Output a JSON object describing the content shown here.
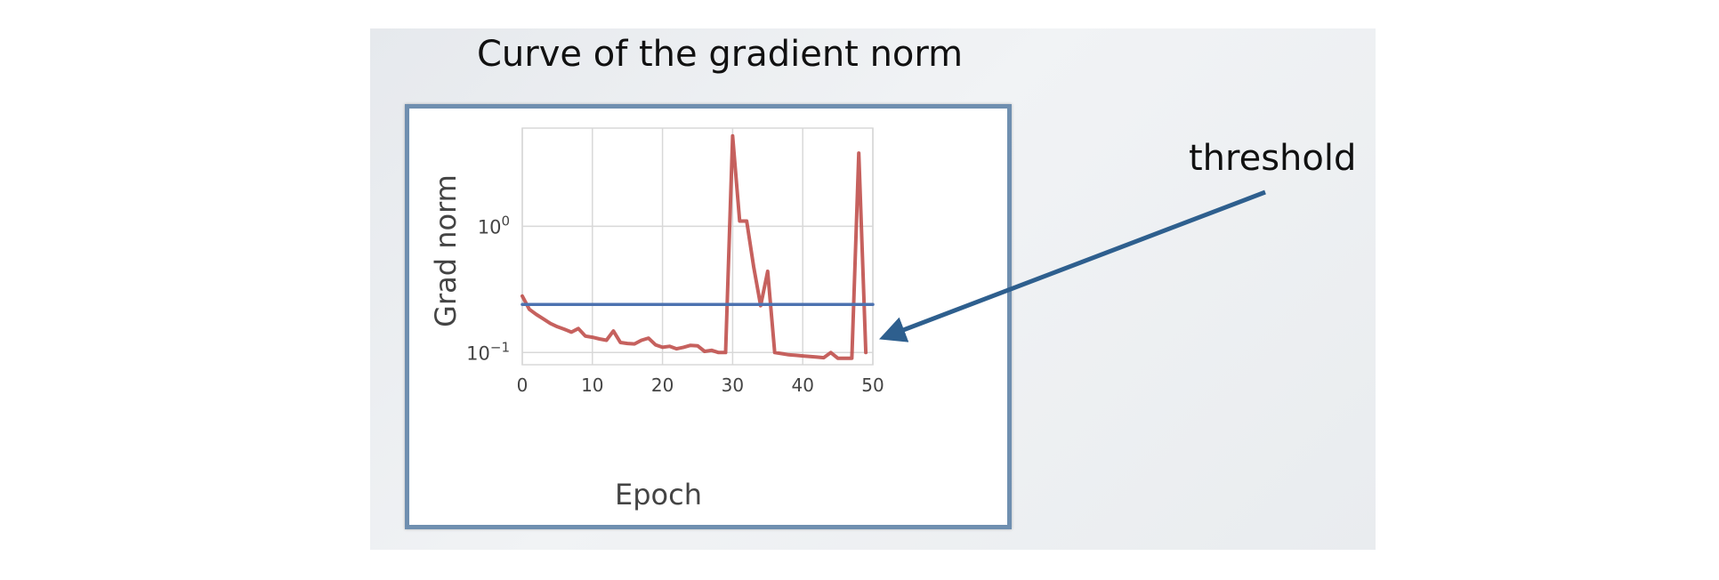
{
  "slide": {
    "title": "Curve of the gradient norm",
    "threshold_label": "threshold"
  },
  "chart_data": {
    "type": "line",
    "title": "",
    "xlabel": "Epoch",
    "ylabel": "Grad norm",
    "xlim": [
      0,
      50
    ],
    "ylim": [
      0.08,
      6
    ],
    "y_scale": "log",
    "x_ticks": [
      {
        "value": 0,
        "label": "0"
      },
      {
        "value": 10,
        "label": "10"
      },
      {
        "value": 20,
        "label": "20"
      },
      {
        "value": 30,
        "label": "30"
      },
      {
        "value": 40,
        "label": "40"
      },
      {
        "value": 50,
        "label": "50"
      }
    ],
    "y_ticks": [
      {
        "value": 0.1,
        "base": "10",
        "exp": "−1"
      },
      {
        "value": 1,
        "base": "10",
        "exp": "0"
      }
    ],
    "grid": true,
    "legend": "none",
    "series": [
      {
        "color": "#c0504d",
        "x": [
          0,
          1,
          2,
          3,
          4,
          5,
          6,
          7,
          8,
          9,
          10,
          11,
          12,
          13,
          14,
          15,
          16,
          17,
          18,
          19,
          20,
          21,
          22,
          23,
          24,
          25,
          26,
          27,
          28,
          29,
          30,
          31,
          32,
          33,
          34,
          35,
          36,
          37,
          38,
          39,
          40,
          41,
          42,
          43,
          44,
          45,
          46,
          47,
          48,
          49
        ],
        "y": [
          0.28,
          0.22,
          0.2,
          0.185,
          0.17,
          0.16,
          0.153,
          0.145,
          0.155,
          0.135,
          0.132,
          0.128,
          0.125,
          0.148,
          0.12,
          0.118,
          0.117,
          0.125,
          0.13,
          0.115,
          0.11,
          0.112,
          0.107,
          0.11,
          0.114,
          0.113,
          0.102,
          0.104,
          0.1,
          0.1,
          5.2,
          1.1,
          1.1,
          0.48,
          0.235,
          0.44,
          0.1,
          0.098,
          0.096,
          0.095,
          0.094,
          0.093,
          0.092,
          0.091,
          0.1,
          0.09,
          0.09,
          0.09,
          3.8,
          0.1
        ]
      },
      {
        "color": "#4c72b0",
        "x": [
          0,
          50
        ],
        "y": [
          0.24,
          0.24
        ]
      }
    ]
  },
  "colors": {
    "frame_border": "#6f8fb0",
    "arrow": "#2e5f8e",
    "grid": "#d8d8d8"
  }
}
